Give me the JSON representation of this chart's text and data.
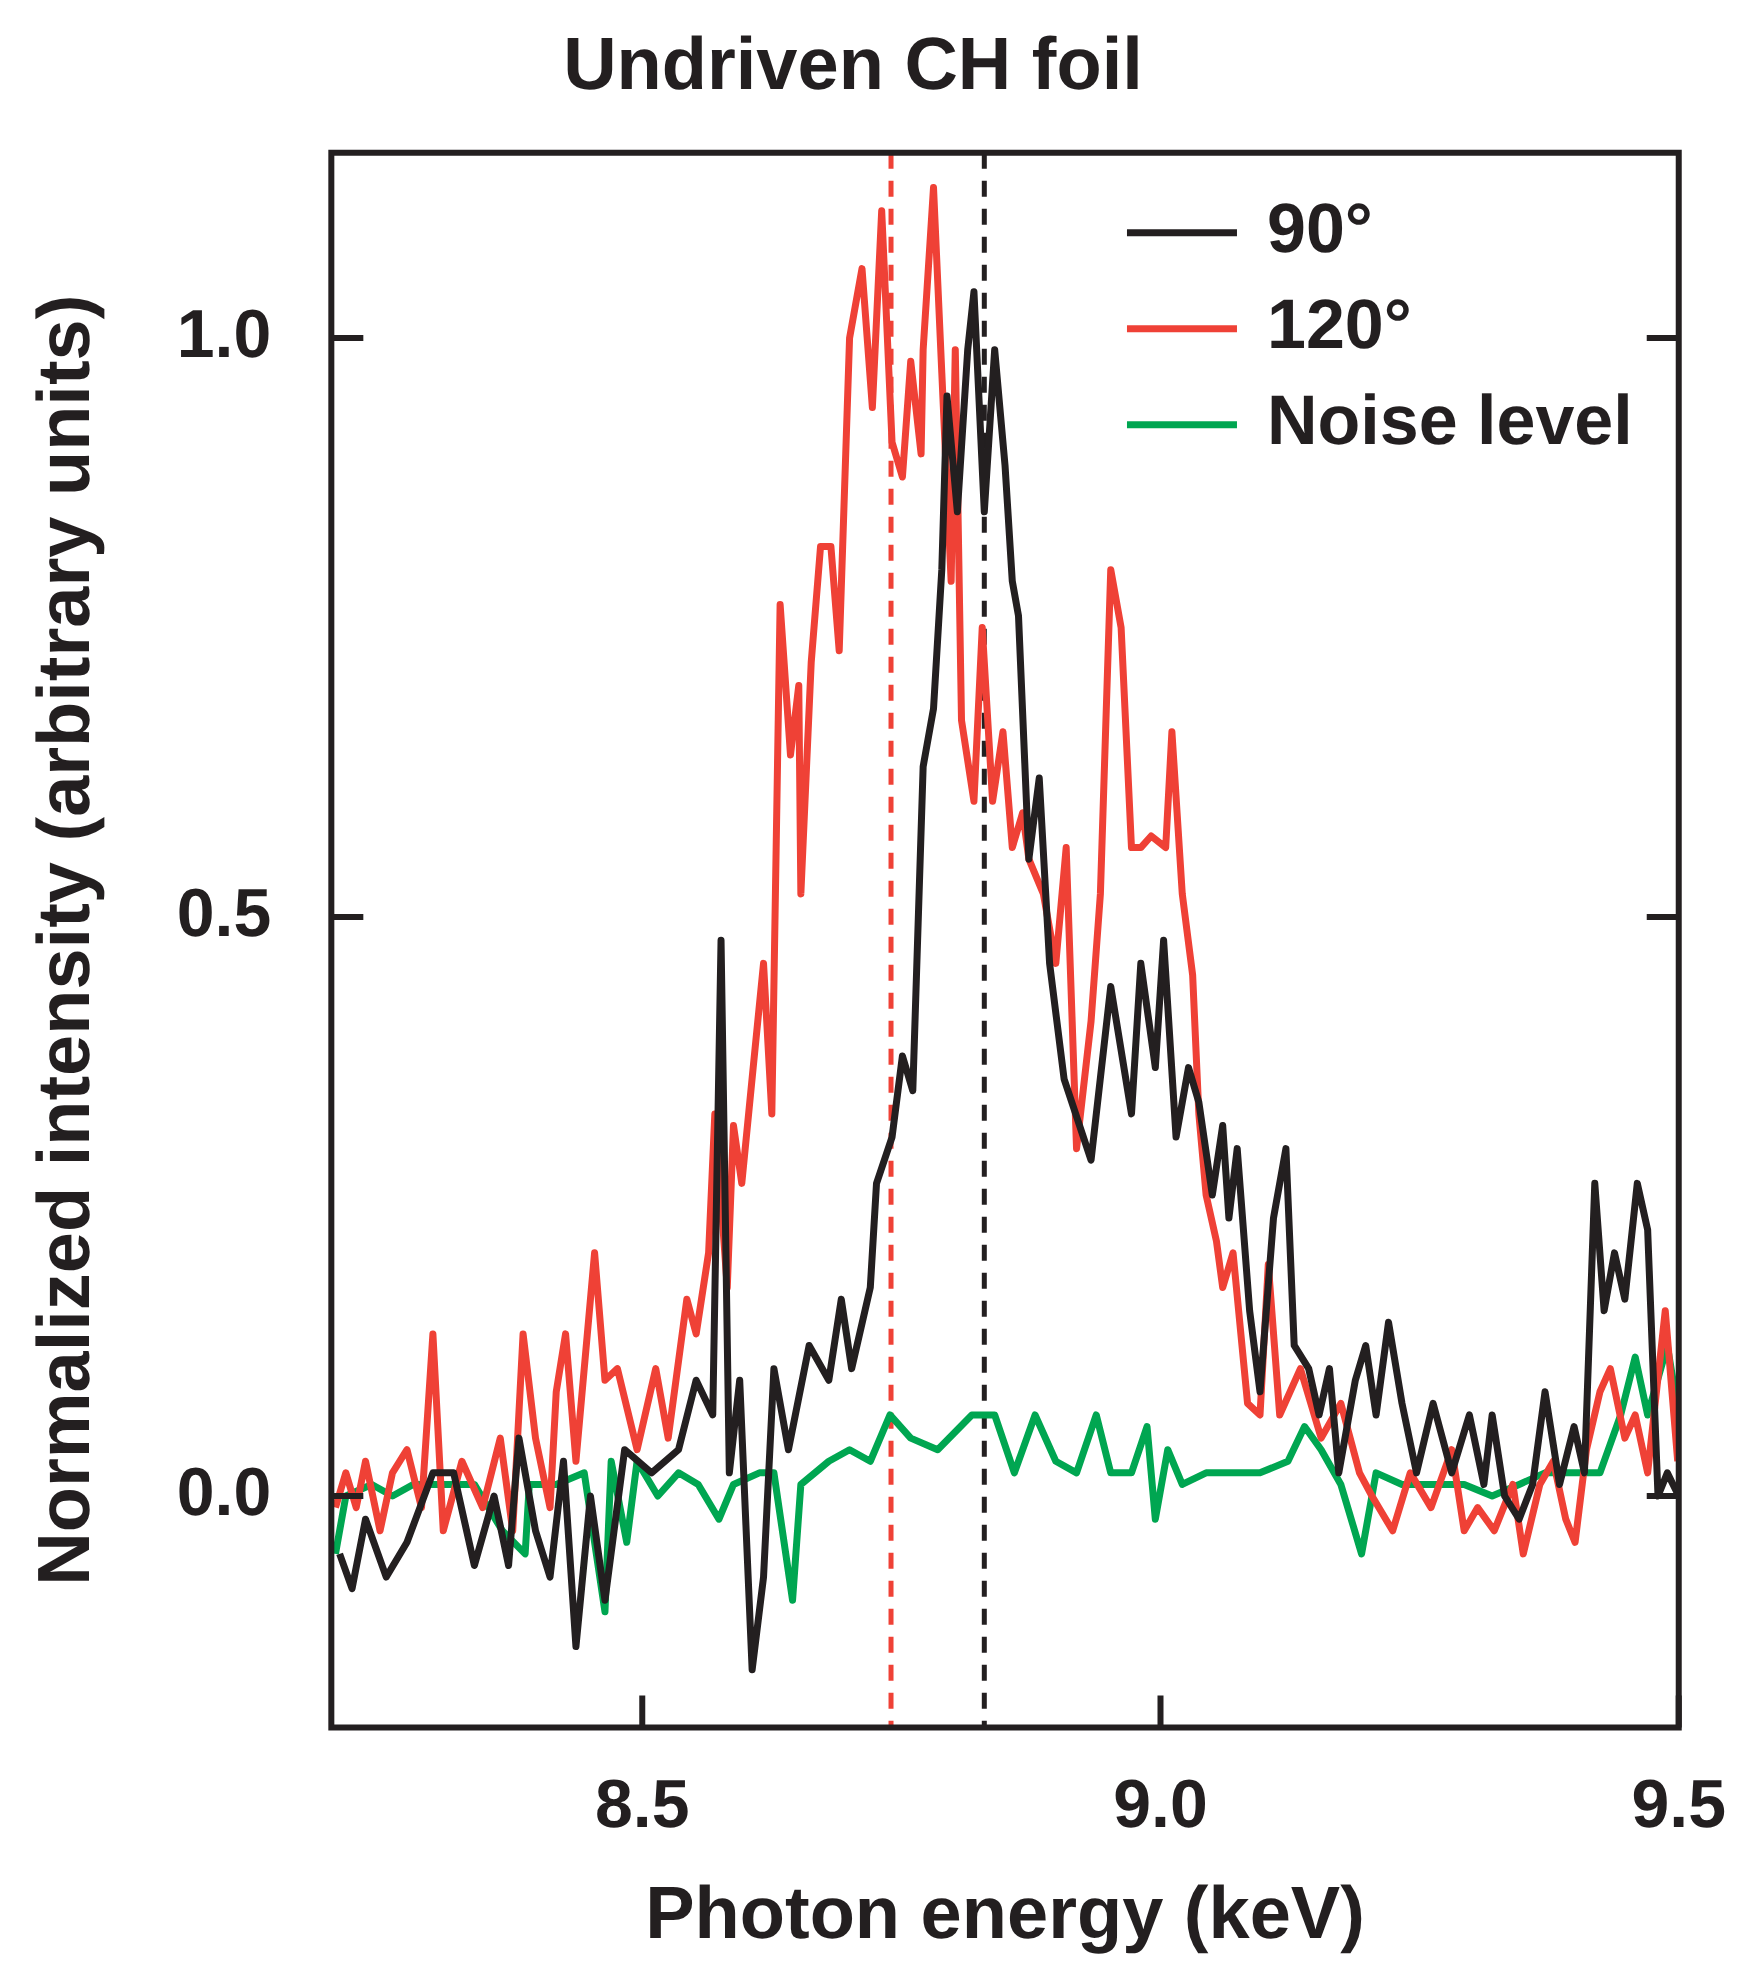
{
  "chart_data": {
    "type": "line",
    "title": "Undriven CH foil",
    "xlabel": "Photon energy (keV)",
    "ylabel": "Normalized intensity (arbitrary units)",
    "xlim": [
      8.2,
      9.5
    ],
    "ylim": [
      -0.2,
      1.16
    ],
    "xticks": [
      8.5,
      {
        "value": 9,
        "label": "9.0"
      },
      9.5
    ],
    "yticks": [
      {
        "value": 0,
        "label": "0.0"
      },
      0.5,
      {
        "value": 1,
        "label": "1.0"
      }
    ],
    "grid": false,
    "legend": "top right",
    "marker": "none",
    "line_style": "solid",
    "ref_lines": [
      {
        "axis": "x",
        "value": 8.74,
        "color": "#ef4136",
        "line_style": "dashed"
      },
      {
        "axis": "x",
        "value": 8.83,
        "color": "#231f20",
        "line_style": "dashed"
      }
    ],
    "series": [
      {
        "name": "90°",
        "color": "#231f20",
        "x": [
          8.208,
          8.22,
          8.233,
          8.253,
          8.273,
          8.298,
          8.318,
          8.338,
          8.357,
          8.371,
          8.381,
          8.397,
          8.411,
          8.424,
          8.436,
          8.45,
          8.464,
          8.483,
          8.509,
          8.535,
          8.552,
          8.568,
          8.576,
          8.584,
          8.594,
          8.606,
          8.617,
          8.627,
          8.641,
          8.661,
          8.68,
          8.692,
          8.702,
          8.72,
          8.726,
          8.741,
          8.751,
          8.761,
          8.771,
          8.781,
          8.789,
          8.794,
          8.804,
          8.814,
          8.82,
          8.83,
          8.84,
          8.85,
          8.857,
          8.863,
          8.873,
          8.883,
          8.893,
          8.907,
          8.933,
          8.952,
          8.972,
          8.981,
          8.995,
          9.003,
          9.015,
          9.027,
          9.037,
          9.05,
          9.06,
          9.066,
          9.074,
          9.086,
          9.096,
          9.109,
          9.121,
          9.129,
          9.143,
          9.153,
          9.163,
          9.172,
          9.188,
          9.198,
          9.208,
          9.22,
          9.233,
          9.247,
          9.263,
          9.281,
          9.298,
          9.312,
          9.32,
          9.332,
          9.346,
          9.359,
          9.371,
          9.385,
          9.399,
          9.409,
          9.419,
          9.428,
          9.438,
          9.448,
          9.46,
          9.47,
          9.48,
          9.489,
          9.5
        ],
        "values": [
          -0.05,
          -0.08,
          -0.02,
          -0.07,
          -0.04,
          0.02,
          0.02,
          -0.06,
          0,
          -0.06,
          0.05,
          -0.03,
          -0.07,
          0.03,
          -0.13,
          0,
          -0.09,
          0.04,
          0.02,
          0.04,
          0.1,
          0.07,
          0.48,
          0.02,
          0.1,
          -0.15,
          -0.07,
          0.11,
          0.04,
          0.13,
          0.1,
          0.17,
          0.11,
          0.18,
          0.27,
          0.31,
          0.38,
          0.35,
          0.63,
          0.68,
          0.8,
          0.95,
          0.85,
          0.99,
          1.04,
          0.85,
          0.99,
          0.89,
          0.79,
          0.76,
          0.55,
          0.62,
          0.46,
          0.36,
          0.29,
          0.44,
          0.33,
          0.46,
          0.37,
          0.48,
          0.31,
          0.37,
          0.34,
          0.26,
          0.32,
          0.24,
          0.3,
          0.16,
          0.09,
          0.24,
          0.3,
          0.13,
          0.11,
          0.07,
          0.11,
          0.02,
          0.1,
          0.13,
          0.07,
          0.15,
          0.08,
          0.02,
          0.08,
          0.02,
          0.07,
          0.01,
          0.07,
          0,
          -0.02,
          0.01,
          0.09,
          0.01,
          0.06,
          0.02,
          0.27,
          0.16,
          0.21,
          0.17,
          0.27,
          0.23,
          0,
          0.02,
          0
        ]
      },
      {
        "name": "120°",
        "color": "#ef4136",
        "x": [
          8.204,
          8.214,
          8.224,
          8.233,
          8.247,
          8.259,
          8.273,
          8.287,
          8.298,
          8.308,
          8.326,
          8.346,
          8.363,
          8.375,
          8.385,
          8.397,
          8.411,
          8.417,
          8.426,
          8.436,
          8.454,
          8.464,
          8.476,
          8.495,
          8.513,
          8.525,
          8.543,
          8.552,
          8.564,
          8.57,
          8.582,
          8.588,
          8.596,
          8.607,
          8.617,
          8.625,
          8.633,
          8.643,
          8.651,
          8.653,
          8.663,
          8.672,
          8.682,
          8.69,
          8.7,
          8.712,
          8.722,
          8.731,
          8.741,
          8.751,
          8.759,
          8.769,
          8.771,
          8.781,
          8.789,
          8.798,
          8.802,
          8.808,
          8.82,
          8.828,
          8.838,
          8.848,
          8.857,
          8.867,
          8.873,
          8.887,
          8.899,
          8.909,
          8.919,
          8.933,
          8.942,
          8.952,
          8.962,
          8.972,
          8.981,
          8.991,
          9.005,
          9.011,
          9.021,
          9.031,
          9.037,
          9.044,
          9.054,
          9.06,
          9.07,
          9.084,
          9.096,
          9.104,
          9.115,
          9.135,
          9.155,
          9.174,
          9.192,
          9.204,
          9.224,
          9.241,
          9.261,
          9.281,
          9.293,
          9.306,
          9.322,
          9.34,
          9.35,
          9.366,
          9.379,
          9.391,
          9.4,
          9.411,
          9.424,
          9.434,
          9.448,
          9.458,
          9.47,
          9.487,
          9.499
        ],
        "values": [
          -0.01,
          0.02,
          -0.01,
          0.03,
          -0.03,
          0.02,
          0.04,
          -0.01,
          0.14,
          -0.03,
          0.03,
          -0.01,
          0.05,
          -0.03,
          0.14,
          0.05,
          -0.01,
          0.09,
          0.14,
          0.03,
          0.21,
          0.1,
          0.11,
          0.04,
          0.11,
          0.05,
          0.17,
          0.14,
          0.21,
          0.33,
          0.18,
          0.32,
          0.27,
          0.37,
          0.46,
          0.33,
          0.77,
          0.64,
          0.7,
          0.52,
          0.72,
          0.82,
          0.82,
          0.73,
          1,
          1.06,
          0.94,
          1.11,
          0.91,
          0.88,
          0.98,
          0.9,
          0.99,
          1.13,
          0.97,
          0.79,
          0.99,
          0.67,
          0.6,
          0.75,
          0.6,
          0.66,
          0.56,
          0.59,
          0.55,
          0.52,
          0.46,
          0.56,
          0.3,
          0.41,
          0.52,
          0.8,
          0.75,
          0.56,
          0.56,
          0.57,
          0.56,
          0.66,
          0.52,
          0.45,
          0.33,
          0.26,
          0.22,
          0.18,
          0.21,
          0.08,
          0.07,
          0.2,
          0.07,
          0.11,
          0.05,
          0.08,
          0.02,
          0,
          -0.03,
          0.02,
          -0.01,
          0.04,
          -0.03,
          -0.01,
          -0.03,
          0.01,
          -0.05,
          0.01,
          0.03,
          -0.02,
          -0.04,
          0.04,
          0.09,
          0.11,
          0.05,
          0.07,
          0.02,
          0.16,
          0.03
        ]
      },
      {
        "name": "Noise level",
        "color": "#00a651",
        "x": [
          8.204,
          8.214,
          8.239,
          8.259,
          8.279,
          8.298,
          8.338,
          8.365,
          8.387,
          8.391,
          8.417,
          8.444,
          8.464,
          8.47,
          8.485,
          8.495,
          8.515,
          8.535,
          8.554,
          8.574,
          8.588,
          8.613,
          8.627,
          8.645,
          8.653,
          8.68,
          8.7,
          8.72,
          8.739,
          8.759,
          8.785,
          8.818,
          8.84,
          8.859,
          8.879,
          8.899,
          8.919,
          8.938,
          8.952,
          8.972,
          8.987,
          8.995,
          9.007,
          9.021,
          9.044,
          9.07,
          9.096,
          9.123,
          9.139,
          9.155,
          9.174,
          9.194,
          9.208,
          9.233,
          9.261,
          9.293,
          9.32,
          9.346,
          9.371,
          9.399,
          9.424,
          9.444,
          9.458,
          9.47,
          9.489,
          9.5
        ],
        "values": [
          -0.05,
          0,
          0.01,
          0,
          0.01,
          0.01,
          0.01,
          -0.03,
          -0.05,
          0.01,
          0.01,
          0.02,
          -0.1,
          0.03,
          -0.04,
          0.03,
          0,
          0.02,
          0.01,
          -0.02,
          0.01,
          0.02,
          0.02,
          -0.09,
          0.01,
          0.03,
          0.04,
          0.03,
          0.07,
          0.05,
          0.04,
          0.07,
          0.07,
          0.02,
          0.07,
          0.03,
          0.02,
          0.07,
          0.02,
          0.02,
          0.06,
          -0.02,
          0.04,
          0.01,
          0.02,
          0.02,
          0.02,
          0.03,
          0.06,
          0.04,
          0.01,
          -0.05,
          0.02,
          0.01,
          0.01,
          0.01,
          0,
          0.01,
          0.02,
          0.02,
          0.02,
          0.07,
          0.12,
          0.07,
          0.13,
          0.07
        ]
      }
    ]
  }
}
